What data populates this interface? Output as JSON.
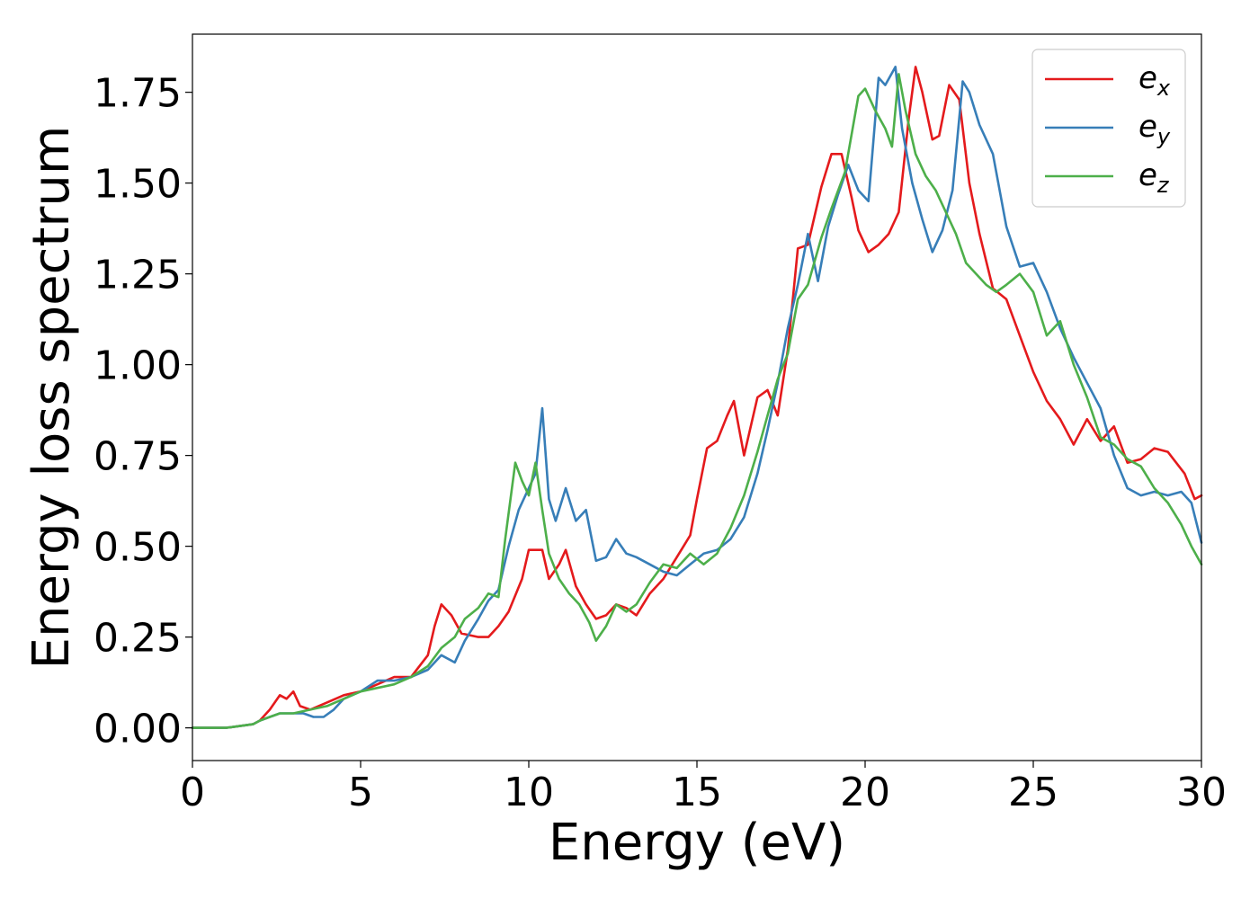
{
  "chart_data": {
    "type": "line",
    "title": "",
    "xlabel": "Energy (eV)",
    "ylabel": "Energy loss spectrum",
    "xlim": [
      0,
      30
    ],
    "ylim": [
      -0.09,
      1.91
    ],
    "xticks": [
      0,
      5,
      10,
      15,
      20,
      25,
      30
    ],
    "xtick_labels": [
      "0",
      "5",
      "10",
      "15",
      "20",
      "25",
      "30"
    ],
    "yticks": [
      0.0,
      0.25,
      0.5,
      0.75,
      1.0,
      1.25,
      1.5,
      1.75
    ],
    "ytick_labels": [
      "0.00",
      "0.25",
      "0.50",
      "0.75",
      "1.00",
      "1.25",
      "1.50",
      "1.75"
    ],
    "grid": false,
    "legend_position": "top-right",
    "series": [
      {
        "name": "e_x",
        "label_base": "e",
        "label_sub": "x",
        "color": "#e41a1c",
        "x": [
          0,
          1.0,
          1.8,
          2.0,
          2.3,
          2.6,
          2.8,
          3.0,
          3.2,
          3.5,
          4.0,
          4.5,
          5.0,
          5.5,
          6.0,
          6.5,
          7.0,
          7.2,
          7.4,
          7.7,
          8.0,
          8.5,
          8.8,
          9.1,
          9.4,
          9.8,
          10.0,
          10.4,
          10.6,
          10.9,
          11.1,
          11.4,
          11.7,
          12.0,
          12.3,
          12.6,
          12.9,
          13.2,
          13.6,
          14.0,
          14.4,
          14.8,
          15.0,
          15.3,
          15.6,
          15.9,
          16.1,
          16.4,
          16.8,
          17.1,
          17.4,
          17.7,
          18.0,
          18.3,
          18.7,
          19.0,
          19.3,
          19.6,
          19.8,
          20.1,
          20.4,
          20.7,
          21.0,
          21.3,
          21.5,
          21.7,
          22.0,
          22.2,
          22.5,
          22.8,
          23.1,
          23.4,
          23.8,
          24.2,
          24.6,
          25.0,
          25.4,
          25.8,
          26.2,
          26.6,
          27.0,
          27.4,
          27.8,
          28.2,
          28.6,
          29.0,
          29.5,
          29.8,
          30.0
        ],
        "y": [
          0.0,
          0.0,
          0.01,
          0.02,
          0.05,
          0.09,
          0.08,
          0.1,
          0.06,
          0.05,
          0.07,
          0.09,
          0.1,
          0.12,
          0.14,
          0.14,
          0.2,
          0.28,
          0.34,
          0.31,
          0.26,
          0.25,
          0.25,
          0.28,
          0.32,
          0.41,
          0.49,
          0.49,
          0.41,
          0.45,
          0.49,
          0.39,
          0.34,
          0.3,
          0.31,
          0.34,
          0.33,
          0.31,
          0.37,
          0.41,
          0.47,
          0.53,
          0.63,
          0.77,
          0.79,
          0.86,
          0.9,
          0.75,
          0.91,
          0.93,
          0.86,
          1.04,
          1.32,
          1.33,
          1.49,
          1.58,
          1.58,
          1.46,
          1.37,
          1.31,
          1.33,
          1.36,
          1.42,
          1.68,
          1.82,
          1.75,
          1.62,
          1.63,
          1.77,
          1.73,
          1.5,
          1.36,
          1.21,
          1.18,
          1.08,
          0.98,
          0.9,
          0.85,
          0.78,
          0.85,
          0.79,
          0.83,
          0.73,
          0.74,
          0.77,
          0.76,
          0.7,
          0.63,
          0.64
        ]
      },
      {
        "name": "e_y",
        "label_base": "e",
        "label_sub": "y",
        "color": "#377eb8",
        "x": [
          0,
          1.0,
          1.8,
          2.0,
          2.3,
          2.6,
          3.0,
          3.3,
          3.6,
          3.9,
          4.2,
          4.5,
          5.0,
          5.5,
          6.0,
          6.5,
          7.0,
          7.4,
          7.8,
          8.1,
          8.5,
          8.8,
          9.1,
          9.4,
          9.7,
          10.0,
          10.2,
          10.4,
          10.6,
          10.8,
          11.1,
          11.4,
          11.7,
          12.0,
          12.3,
          12.6,
          12.9,
          13.2,
          13.6,
          14.0,
          14.4,
          14.8,
          15.2,
          15.6,
          16.0,
          16.4,
          16.8,
          17.1,
          17.4,
          17.7,
          18.0,
          18.3,
          18.6,
          18.9,
          19.2,
          19.5,
          19.8,
          20.1,
          20.4,
          20.6,
          20.9,
          21.1,
          21.4,
          21.7,
          22.0,
          22.3,
          22.6,
          22.9,
          23.1,
          23.4,
          23.8,
          24.2,
          24.6,
          25.0,
          25.4,
          25.8,
          26.2,
          26.6,
          27.0,
          27.4,
          27.8,
          28.2,
          28.6,
          29.0,
          29.4,
          29.7,
          30.0
        ],
        "y": [
          0.0,
          0.0,
          0.01,
          0.02,
          0.03,
          0.04,
          0.04,
          0.04,
          0.03,
          0.03,
          0.05,
          0.08,
          0.1,
          0.13,
          0.13,
          0.14,
          0.16,
          0.2,
          0.18,
          0.24,
          0.3,
          0.35,
          0.38,
          0.5,
          0.6,
          0.66,
          0.7,
          0.88,
          0.63,
          0.57,
          0.66,
          0.57,
          0.6,
          0.46,
          0.47,
          0.52,
          0.48,
          0.47,
          0.45,
          0.43,
          0.42,
          0.45,
          0.48,
          0.49,
          0.52,
          0.58,
          0.7,
          0.82,
          0.95,
          1.1,
          1.22,
          1.36,
          1.23,
          1.38,
          1.47,
          1.55,
          1.48,
          1.45,
          1.79,
          1.77,
          1.82,
          1.65,
          1.5,
          1.4,
          1.31,
          1.37,
          1.48,
          1.78,
          1.75,
          1.66,
          1.58,
          1.38,
          1.27,
          1.28,
          1.2,
          1.1,
          1.02,
          0.95,
          0.88,
          0.75,
          0.66,
          0.64,
          0.65,
          0.64,
          0.65,
          0.62,
          0.51
        ]
      },
      {
        "name": "e_z",
        "label_base": "e",
        "label_sub": "z",
        "color": "#4daf4a",
        "x": [
          0,
          1.0,
          1.8,
          2.0,
          2.3,
          2.6,
          3.0,
          3.5,
          4.0,
          4.5,
          5.0,
          5.5,
          6.0,
          6.5,
          7.0,
          7.4,
          7.8,
          8.1,
          8.5,
          8.8,
          9.1,
          9.3,
          9.6,
          9.8,
          10.0,
          10.2,
          10.4,
          10.6,
          10.9,
          11.2,
          11.5,
          11.8,
          12.0,
          12.3,
          12.6,
          12.9,
          13.2,
          13.6,
          14.0,
          14.4,
          14.8,
          15.2,
          15.6,
          16.0,
          16.4,
          16.8,
          17.1,
          17.4,
          17.7,
          18.0,
          18.3,
          18.7,
          19.0,
          19.4,
          19.8,
          20.0,
          20.3,
          20.6,
          20.8,
          21.0,
          21.2,
          21.5,
          21.8,
          22.1,
          22.4,
          22.7,
          23.0,
          23.3,
          23.6,
          23.9,
          24.2,
          24.6,
          25.0,
          25.4,
          25.8,
          26.2,
          26.6,
          27.0,
          27.4,
          27.8,
          28.2,
          28.6,
          29.0,
          29.4,
          29.7,
          30.0
        ],
        "y": [
          0.0,
          0.0,
          0.01,
          0.02,
          0.03,
          0.04,
          0.04,
          0.05,
          0.06,
          0.08,
          0.1,
          0.11,
          0.12,
          0.14,
          0.17,
          0.22,
          0.25,
          0.3,
          0.33,
          0.37,
          0.36,
          0.52,
          0.73,
          0.68,
          0.64,
          0.73,
          0.6,
          0.48,
          0.41,
          0.37,
          0.34,
          0.29,
          0.24,
          0.28,
          0.34,
          0.32,
          0.34,
          0.4,
          0.45,
          0.44,
          0.48,
          0.45,
          0.48,
          0.55,
          0.64,
          0.76,
          0.86,
          0.96,
          1.03,
          1.18,
          1.22,
          1.35,
          1.43,
          1.53,
          1.74,
          1.76,
          1.7,
          1.65,
          1.6,
          1.8,
          1.7,
          1.58,
          1.52,
          1.48,
          1.42,
          1.36,
          1.28,
          1.25,
          1.22,
          1.2,
          1.22,
          1.25,
          1.2,
          1.08,
          1.12,
          1.0,
          0.91,
          0.8,
          0.78,
          0.74,
          0.72,
          0.66,
          0.62,
          0.56,
          0.5,
          0.45
        ]
      }
    ]
  }
}
